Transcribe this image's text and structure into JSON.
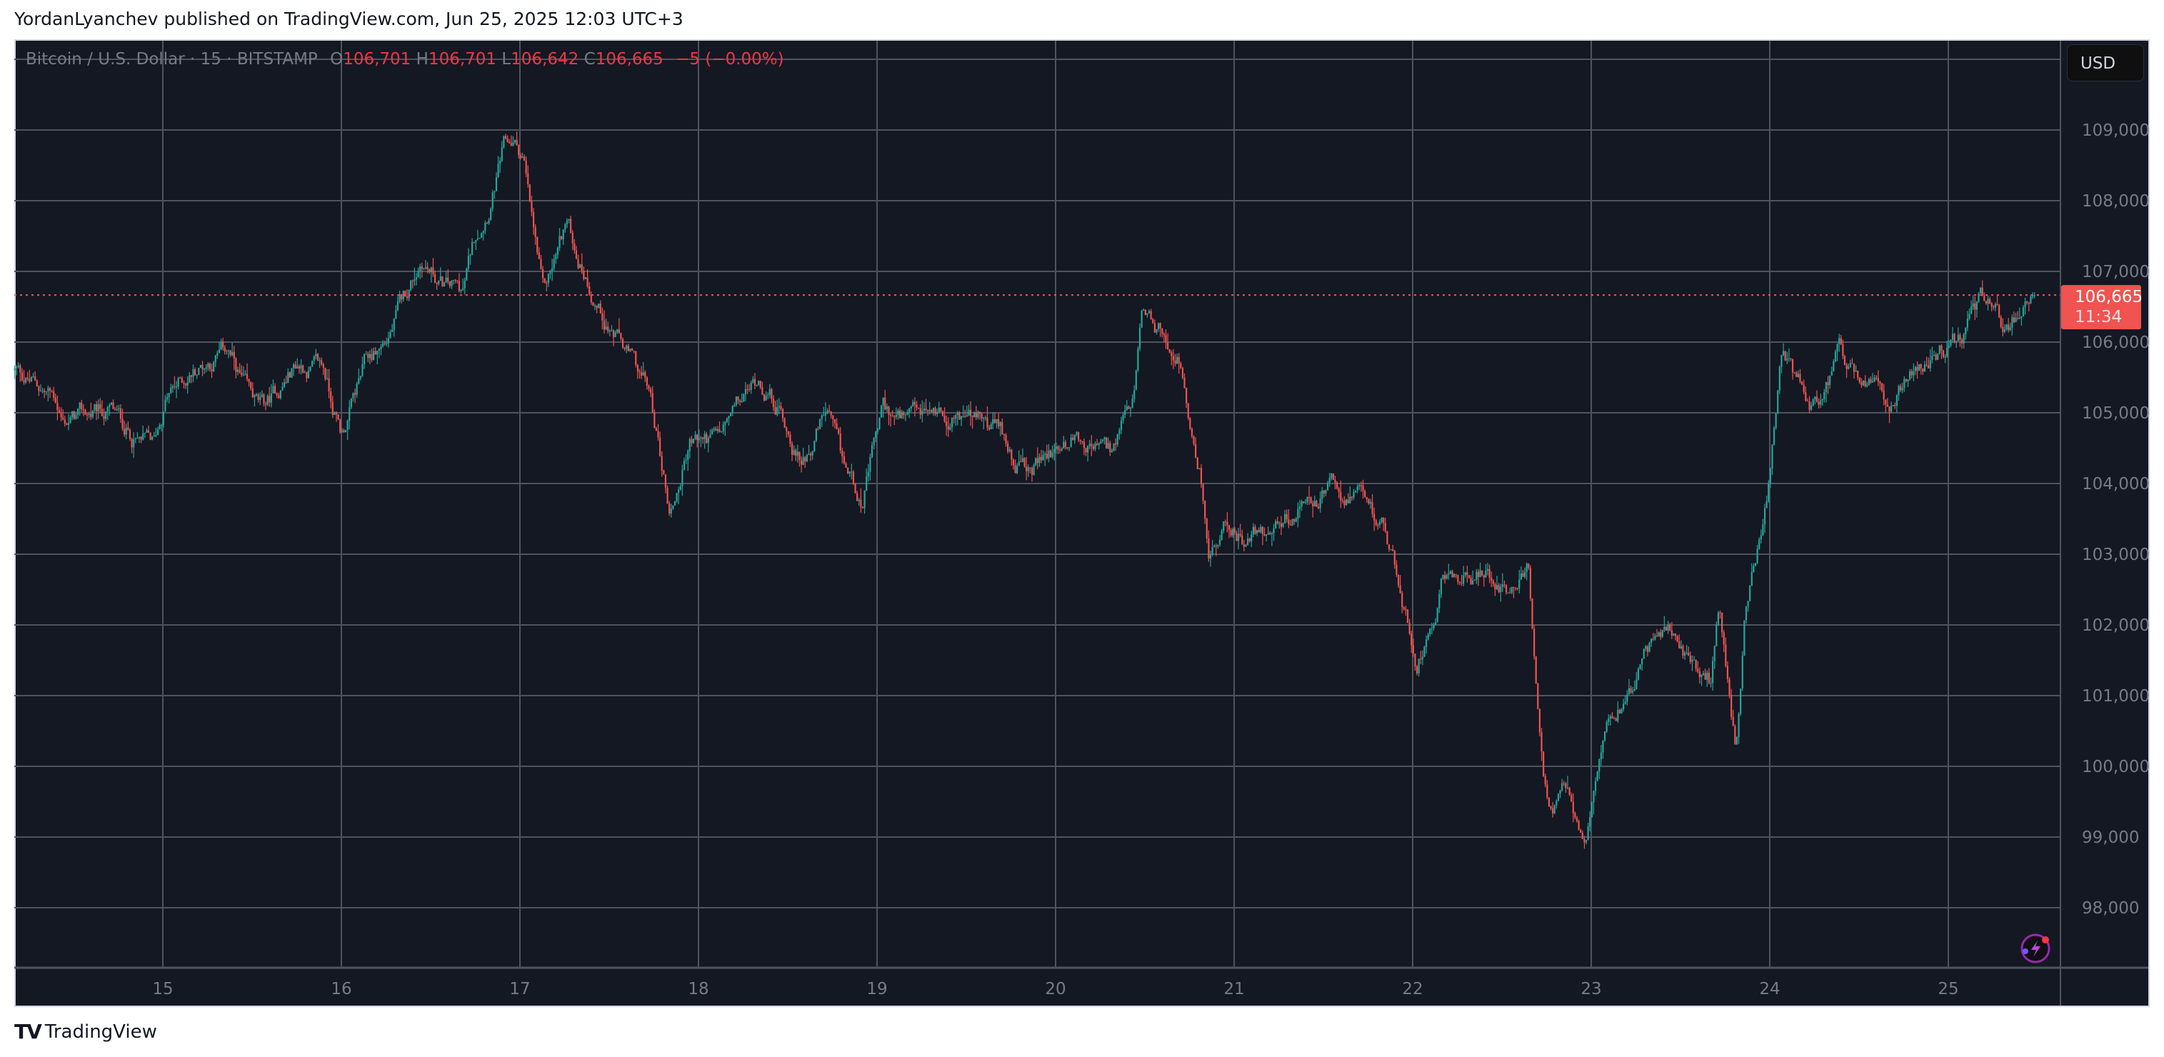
{
  "header": {
    "published": "YordanLyanchev published on TradingView.com, Jun 25, 2025 12:03 UTC+3"
  },
  "legend": {
    "symbol": "Bitcoin / U.S. Dollar · 15 · BITSTAMP",
    "o_label": "O",
    "o": "106,701",
    "h_label": "H",
    "h": "106,701",
    "l_label": "L",
    "l": "106,642",
    "c_label": "C",
    "c": "106,665",
    "change": "−5 (−0.00%)"
  },
  "price_axis": {
    "currency": "USD",
    "last_price": "106,665",
    "countdown": "11:34"
  },
  "footer": {
    "brand": "TradingView"
  },
  "colors": {
    "background": "#141823",
    "grid": "#4f535d",
    "up": "#26a69a",
    "down": "#ef5350",
    "last_price": "#f05350"
  },
  "icons": [
    "tradingview-logo-icon",
    "lightning-assistant-icon"
  ],
  "chart_data": {
    "type": "candlestick",
    "interval": "15",
    "x_unit": "day of June 2025",
    "xlim": [
      14.17,
      25.49
    ],
    "ylim": [
      97200,
      110200
    ],
    "grid": true,
    "x_ticks": [
      "15",
      "16",
      "17",
      "18",
      "19",
      "20",
      "21",
      "22",
      "23",
      "24",
      "25"
    ],
    "y_ticks": [
      "98,000",
      "99,000",
      "100,000",
      "101,000",
      "102,000",
      "103,000",
      "104,000",
      "105,000",
      "106,000",
      "107,000",
      "108,000",
      "109,000"
    ],
    "last_price": 106665,
    "price_path": [
      [
        14.17,
        105600
      ],
      [
        14.4,
        105200
      ],
      [
        14.44,
        104900
      ],
      [
        14.71,
        105000
      ],
      [
        14.86,
        104600
      ],
      [
        14.95,
        104500
      ],
      [
        15.02,
        105200
      ],
      [
        15.17,
        105600
      ],
      [
        15.36,
        105900
      ],
      [
        15.48,
        105200
      ],
      [
        15.56,
        105000
      ],
      [
        15.75,
        105700
      ],
      [
        15.9,
        105600
      ],
      [
        16.0,
        104700
      ],
      [
        16.14,
        105700
      ],
      [
        16.25,
        106000
      ],
      [
        16.37,
        106700
      ],
      [
        16.45,
        107200
      ],
      [
        16.56,
        106800
      ],
      [
        16.68,
        106700
      ],
      [
        16.75,
        107500
      ],
      [
        16.83,
        108000
      ],
      [
        16.91,
        108700
      ],
      [
        16.96,
        108800
      ],
      [
        17.02,
        108600
      ],
      [
        17.06,
        107800
      ],
      [
        17.13,
        106600
      ],
      [
        17.18,
        107000
      ],
      [
        17.26,
        107700
      ],
      [
        17.33,
        107200
      ],
      [
        17.45,
        106500
      ],
      [
        17.6,
        105800
      ],
      [
        17.72,
        105300
      ],
      [
        17.78,
        104500
      ],
      [
        17.84,
        103600
      ],
      [
        17.89,
        104000
      ],
      [
        17.95,
        104600
      ],
      [
        18.11,
        104600
      ],
      [
        18.26,
        105200
      ],
      [
        18.34,
        105500
      ],
      [
        18.45,
        105100
      ],
      [
        18.57,
        104300
      ],
      [
        18.72,
        105000
      ],
      [
        18.8,
        104200
      ],
      [
        18.92,
        103800
      ],
      [
        19.03,
        105000
      ],
      [
        19.19,
        104800
      ],
      [
        19.34,
        105000
      ],
      [
        19.5,
        105000
      ],
      [
        19.69,
        104700
      ],
      [
        19.85,
        104100
      ],
      [
        19.96,
        104400
      ],
      [
        20.12,
        104700
      ],
      [
        20.31,
        104400
      ],
      [
        20.43,
        105000
      ],
      [
        20.48,
        106200
      ],
      [
        20.58,
        106100
      ],
      [
        20.7,
        105800
      ],
      [
        20.75,
        104600
      ],
      [
        20.81,
        104100
      ],
      [
        20.86,
        103000
      ],
      [
        20.97,
        103400
      ],
      [
        21.08,
        103200
      ],
      [
        21.28,
        103500
      ],
      [
        21.43,
        103700
      ],
      [
        21.55,
        103900
      ],
      [
        21.7,
        103700
      ],
      [
        21.85,
        103300
      ],
      [
        21.93,
        102500
      ],
      [
        22.02,
        101500
      ],
      [
        22.13,
        102300
      ],
      [
        22.16,
        103000
      ],
      [
        22.28,
        102700
      ],
      [
        22.4,
        102700
      ],
      [
        22.55,
        102600
      ],
      [
        22.65,
        102800
      ],
      [
        22.68,
        101400
      ],
      [
        22.73,
        100000
      ],
      [
        22.78,
        99300
      ],
      [
        22.86,
        99600
      ],
      [
        22.96,
        98700
      ],
      [
        23.01,
        99500
      ],
      [
        23.08,
        100800
      ],
      [
        23.21,
        101100
      ],
      [
        23.36,
        101800
      ],
      [
        23.45,
        101900
      ],
      [
        23.55,
        101400
      ],
      [
        23.67,
        101200
      ],
      [
        23.72,
        102200
      ],
      [
        23.81,
        100300
      ],
      [
        23.86,
        102200
      ],
      [
        23.94,
        103100
      ],
      [
        24.0,
        104000
      ],
      [
        24.07,
        105800
      ],
      [
        24.13,
        105400
      ],
      [
        24.29,
        105000
      ],
      [
        24.4,
        105800
      ],
      [
        24.52,
        105300
      ],
      [
        24.68,
        105200
      ],
      [
        24.79,
        105700
      ],
      [
        24.91,
        105800
      ],
      [
        25.06,
        106000
      ],
      [
        25.16,
        106500
      ],
      [
        25.24,
        106700
      ],
      [
        25.33,
        106200
      ],
      [
        25.41,
        106500
      ],
      [
        25.49,
        106665
      ]
    ]
  }
}
